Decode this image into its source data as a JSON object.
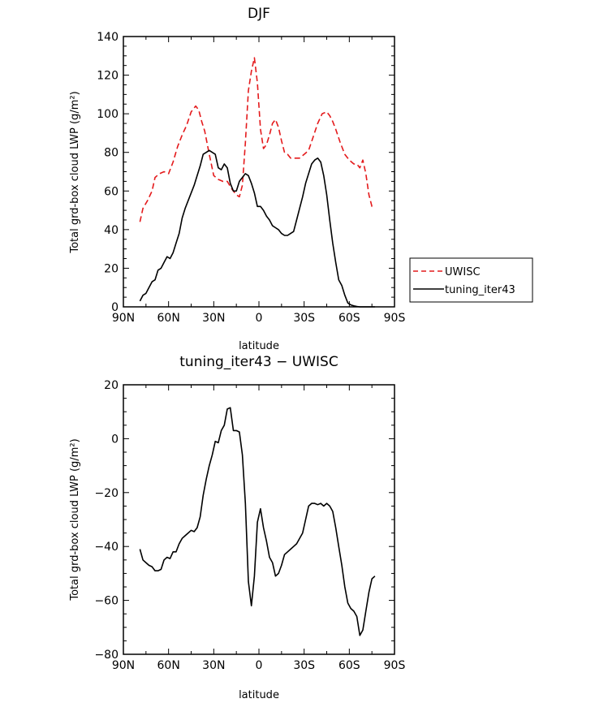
{
  "chart_data": [
    {
      "type": "line",
      "title": "DJF",
      "xlabel": "latitude",
      "ylabel": "Total grd-box cloud LWP (g/m²)",
      "xlim": [
        90,
        -90
      ],
      "ylim": [
        0,
        140
      ],
      "x_ticks": [
        90,
        60,
        30,
        0,
        -30,
        -60,
        -90
      ],
      "x_tick_labels": [
        "90N",
        "60N",
        "30N",
        "0",
        "30S",
        "60S",
        "90S"
      ],
      "y_ticks": [
        0,
        20,
        40,
        60,
        80,
        100,
        120,
        140
      ],
      "y_tick_labels": [
        "0",
        "20",
        "40",
        "60",
        "80",
        "100",
        "120",
        "140"
      ],
      "legend": "outside-right",
      "series": [
        {
          "name": "UWISC",
          "color": "#e41a1c",
          "dash": "dashed",
          "x": [
            79,
            77,
            74,
            71,
            69,
            66,
            63,
            60,
            57,
            54,
            51,
            48,
            45,
            42,
            40,
            38,
            36,
            33,
            30,
            27,
            24,
            21,
            18,
            15,
            13,
            11,
            9,
            7,
            5,
            3,
            1,
            -1,
            -3,
            -5,
            -7,
            -9,
            -11,
            -13,
            -15,
            -17,
            -19,
            -21,
            -23,
            -25,
            -27,
            -30,
            -33,
            -36,
            -39,
            -42,
            -45,
            -47,
            -49,
            -51,
            -54,
            -57,
            -60,
            -63,
            -65,
            -67,
            -69,
            -71,
            -73,
            -75,
            -77
          ],
          "y": [
            44,
            51,
            55,
            60,
            67,
            69,
            70,
            69,
            75,
            83,
            89,
            94,
            101,
            104,
            102,
            96,
            91,
            79,
            68,
            66,
            65,
            65,
            61,
            58,
            57,
            63,
            85,
            112,
            122,
            129,
            116,
            92,
            82,
            84,
            89,
            95,
            97,
            93,
            86,
            80,
            79,
            77,
            77,
            77,
            77,
            79,
            81,
            88,
            95,
            100,
            101,
            99,
            96,
            92,
            85,
            79,
            76,
            74,
            74,
            72,
            76,
            69,
            58,
            52,
            52
          ]
        },
        {
          "name": "tuning_iter43",
          "color": "#000000",
          "dash": "solid",
          "x": [
            79,
            77,
            75,
            73,
            71,
            69,
            67,
            65,
            63,
            61,
            59,
            57,
            55,
            53,
            51,
            49,
            47,
            45,
            43,
            41,
            39,
            37,
            35,
            33,
            31,
            29,
            27,
            25,
            23,
            21,
            19,
            17,
            15,
            13,
            11,
            9,
            7,
            5,
            3,
            1,
            -1,
            -3,
            -5,
            -7,
            -9,
            -11,
            -13,
            -15,
            -17,
            -19,
            -21,
            -23,
            -25,
            -27,
            -29,
            -31,
            -33,
            -35,
            -37,
            -39,
            -41,
            -43,
            -45,
            -47,
            -49,
            -51,
            -53,
            -55,
            -57,
            -59,
            -61,
            -63,
            -65,
            -67,
            -69,
            -71,
            -73,
            -75,
            -77
          ],
          "y": [
            3,
            6,
            7,
            10,
            13,
            14,
            19,
            20,
            23,
            26,
            25,
            28,
            33,
            38,
            46,
            51,
            55,
            59,
            63,
            68,
            73,
            79,
            80,
            81,
            80,
            79,
            72,
            71,
            74,
            72,
            64,
            60,
            60,
            65,
            67,
            69,
            68,
            64,
            59,
            52,
            52,
            50,
            47,
            45,
            42,
            41,
            40,
            38,
            37,
            37,
            38,
            39,
            45,
            51,
            57,
            64,
            69,
            74,
            76,
            77,
            75,
            68,
            58,
            45,
            33,
            23,
            14,
            11,
            6,
            2,
            1,
            0.5,
            0.2,
            0,
            0,
            0,
            0,
            0,
            0
          ]
        }
      ]
    },
    {
      "type": "line",
      "title": "tuning_iter43 − UWISC",
      "xlabel": "latitude",
      "ylabel": "Total grd-box cloud LWP (g/m²)",
      "xlim": [
        90,
        -90
      ],
      "ylim": [
        -80,
        20
      ],
      "x_ticks": [
        90,
        60,
        30,
        0,
        -30,
        -60,
        -90
      ],
      "x_tick_labels": [
        "90N",
        "60N",
        "30N",
        "0",
        "30S",
        "60S",
        "90S"
      ],
      "y_ticks": [
        -80,
        -60,
        -40,
        -20,
        0,
        20
      ],
      "y_tick_labels": [
        "−80",
        "−60",
        "−40",
        "−20",
        "0",
        "20"
      ],
      "series": [
        {
          "color": "#000000",
          "dash": "solid",
          "x": [
            79,
            77,
            75,
            73,
            71,
            69,
            67,
            65,
            63,
            61,
            59,
            57,
            55,
            53,
            51,
            49,
            47,
            45,
            43,
            41,
            39,
            37,
            35,
            33,
            31,
            29,
            27,
            25,
            23,
            21,
            19,
            17,
            15,
            13,
            11,
            9,
            7,
            5,
            3,
            1,
            -1,
            -3,
            -5,
            -7,
            -9,
            -11,
            -13,
            -15,
            -17,
            -19,
            -21,
            -23,
            -25,
            -27,
            -29,
            -31,
            -33,
            -35,
            -37,
            -39,
            -41,
            -43,
            -45,
            -47,
            -49,
            -51,
            -53,
            -55,
            -57,
            -59,
            -61,
            -63,
            -65,
            -67,
            -69,
            -71,
            -73,
            -75,
            -77
          ],
          "y": [
            -41,
            -45,
            -46,
            -47,
            -47.5,
            -49,
            -49,
            -48.5,
            -45,
            -44,
            -44.5,
            -42,
            -42,
            -39,
            -37,
            -36,
            -35,
            -34,
            -34.5,
            -33,
            -29,
            -21,
            -15,
            -10,
            -6,
            -1,
            -1.5,
            3,
            5,
            11,
            11.5,
            3,
            3,
            2.5,
            -6,
            -24,
            -53,
            -62,
            -51,
            -31,
            -26,
            -33,
            -38,
            -44,
            -46,
            -51,
            -50,
            -47,
            -43,
            -42,
            -41,
            -40,
            -39,
            -37,
            -35,
            -30,
            -25,
            -24,
            -24,
            -24.5,
            -24,
            -25,
            -24,
            -25,
            -27,
            -33,
            -40,
            -47,
            -55,
            -61,
            -63,
            -64,
            -66,
            -73,
            -71,
            -64,
            -57,
            -52,
            -51
          ]
        }
      ]
    }
  ]
}
